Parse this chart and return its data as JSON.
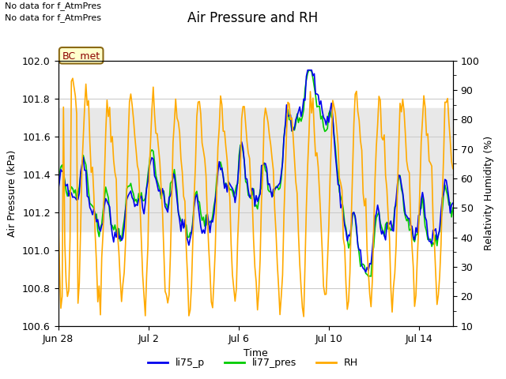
{
  "title": "Air Pressure and RH",
  "xlabel": "Time",
  "ylabel_left": "Air Pressure (kPa)",
  "ylabel_right": "Relativity Humidity (%)",
  "ylim_left": [
    100.6,
    102.0
  ],
  "ylim_right": [
    10,
    100
  ],
  "yticks_left": [
    100.6,
    100.8,
    101.0,
    101.2,
    101.4,
    101.6,
    101.8,
    102.0
  ],
  "yticks_right": [
    10,
    20,
    30,
    40,
    50,
    60,
    70,
    80,
    90,
    100
  ],
  "xtick_labels": [
    "Jun 28",
    "Jul 2",
    "Jul 6",
    "Jul 10",
    "Jul 14"
  ],
  "xtick_pos": [
    0,
    4,
    8,
    12,
    16
  ],
  "xlim": [
    0,
    17.5
  ],
  "top_text_line1": "No data for f_AtmPres",
  "top_text_line2": "No data for f_AtmPres",
  "box_label": "BC_met",
  "legend_labels": [
    "li75_p",
    "li77_pres",
    "RH"
  ],
  "line_blue_color": "#0000ee",
  "line_green_color": "#00cc00",
  "line_orange_color": "#ffaa00",
  "shading_color": "#e8e8e8",
  "shading_ymin": 101.1,
  "shading_ymax": 101.75,
  "background_color": "#ffffff",
  "grid_color": "#cccccc",
  "title_fontsize": 12,
  "label_fontsize": 9,
  "tick_fontsize": 9,
  "legend_fontsize": 9
}
